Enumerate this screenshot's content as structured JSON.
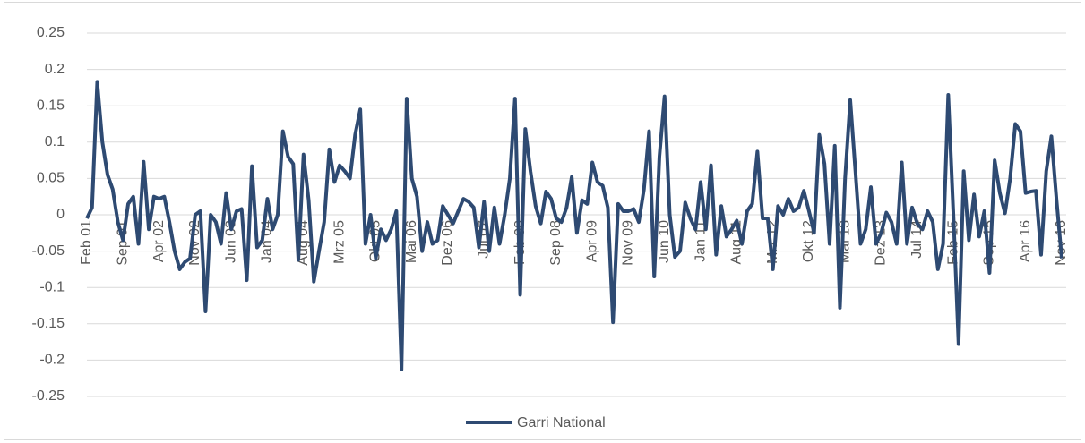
{
  "chart_data": {
    "type": "line",
    "categories": [
      "Feb 01",
      null,
      null,
      null,
      null,
      null,
      null,
      "Sep 01",
      null,
      null,
      null,
      null,
      null,
      null,
      "Apr 02",
      null,
      null,
      null,
      null,
      null,
      null,
      "Nov 02",
      null,
      null,
      null,
      null,
      null,
      null,
      "Jun 03",
      null,
      null,
      null,
      null,
      null,
      null,
      "Jan 04",
      null,
      null,
      null,
      null,
      null,
      null,
      "Aug 04",
      null,
      null,
      null,
      null,
      null,
      null,
      "Mrz 05",
      null,
      null,
      null,
      null,
      null,
      null,
      "Okt 05",
      null,
      null,
      null,
      null,
      null,
      null,
      "Mai 06",
      null,
      null,
      null,
      null,
      null,
      null,
      "Dez 06",
      null,
      null,
      null,
      null,
      null,
      null,
      "Jul 07",
      null,
      null,
      null,
      null,
      null,
      null,
      "Feb 08",
      null,
      null,
      null,
      null,
      null,
      null,
      "Sep 08",
      null,
      null,
      null,
      null,
      null,
      null,
      "Apr 09",
      null,
      null,
      null,
      null,
      null,
      null,
      "Nov 09",
      null,
      null,
      null,
      null,
      null,
      null,
      "Jun 10",
      null,
      null,
      null,
      null,
      null,
      null,
      "Jan 11",
      null,
      null,
      null,
      null,
      null,
      null,
      "Aug 11",
      null,
      null,
      null,
      null,
      null,
      null,
      "Mrz 12",
      null,
      null,
      null,
      null,
      null,
      null,
      "Okt 12",
      null,
      null,
      null,
      null,
      null,
      null,
      "Mai 13",
      null,
      null,
      null,
      null,
      null,
      null,
      "Dez 13",
      null,
      null,
      null,
      null,
      null,
      null,
      "Jul 14",
      null,
      null,
      null,
      null,
      null,
      null,
      "Feb 15",
      null,
      null,
      null,
      null,
      null,
      null,
      "Sep 15",
      null,
      null,
      null,
      null,
      null,
      null,
      "Apr 16",
      null,
      null,
      null,
      null,
      null,
      null,
      "Nov 16"
    ],
    "series": [
      {
        "name": "Garri National",
        "color": "#2e4a72",
        "values": [
          -0.005,
          0.01,
          0.183,
          0.1,
          0.055,
          0.035,
          -0.01,
          -0.035,
          0.015,
          0.025,
          -0.04,
          0.073,
          -0.02,
          0.025,
          0.022,
          0.025,
          -0.01,
          -0.05,
          -0.075,
          -0.065,
          -0.06,
          0.0,
          0.005,
          -0.133,
          0.0,
          -0.01,
          -0.04,
          0.03,
          -0.02,
          0.005,
          0.008,
          -0.09,
          0.067,
          -0.045,
          -0.035,
          0.022,
          -0.02,
          0.0,
          0.115,
          0.08,
          0.07,
          -0.062,
          0.083,
          0.02,
          -0.092,
          -0.05,
          -0.01,
          0.09,
          0.045,
          0.068,
          0.06,
          0.05,
          0.11,
          0.145,
          -0.04,
          0.0,
          -0.06,
          -0.02,
          -0.035,
          -0.02,
          0.005,
          -0.213,
          0.16,
          0.05,
          0.025,
          -0.05,
          -0.01,
          -0.04,
          -0.035,
          0.012,
          0.0,
          -0.012,
          0.005,
          0.022,
          0.018,
          0.01,
          -0.045,
          0.018,
          -0.05,
          0.01,
          -0.04,
          0.0,
          0.05,
          0.16,
          -0.11,
          0.118,
          0.06,
          0.012,
          -0.012,
          0.032,
          0.022,
          -0.005,
          -0.01,
          0.01,
          0.052,
          -0.025,
          0.02,
          0.015,
          0.072,
          0.045,
          0.04,
          0.01,
          -0.148,
          0.015,
          0.005,
          0.005,
          0.008,
          -0.01,
          0.035,
          0.115,
          -0.085,
          0.08,
          0.163,
          0.0,
          -0.058,
          -0.05,
          0.017,
          -0.005,
          -0.02,
          0.045,
          -0.02,
          0.068,
          -0.055,
          0.012,
          -0.03,
          -0.02,
          -0.008,
          -0.04,
          0.005,
          0.015,
          0.087,
          -0.005,
          -0.005,
          -0.075,
          0.012,
          0.0,
          0.022,
          0.005,
          0.01,
          0.033,
          0.005,
          -0.025,
          0.11,
          0.07,
          -0.04,
          0.095,
          -0.128,
          0.05,
          0.158,
          0.06,
          -0.04,
          -0.02,
          0.038,
          -0.04,
          -0.025,
          0.003,
          -0.01,
          -0.04,
          0.072,
          -0.04,
          0.01,
          -0.012,
          -0.02,
          0.005,
          -0.01,
          -0.075,
          -0.04,
          0.165,
          0.0,
          -0.178,
          0.06,
          -0.035,
          0.028,
          -0.03,
          0.005,
          -0.08,
          0.075,
          0.03,
          0.002,
          0.05,
          0.125,
          0.115,
          0.03,
          0.032,
          0.033,
          -0.055,
          0.06,
          0.108,
          0.02,
          -0.06
        ]
      }
    ],
    "ylim": [
      -0.25,
      0.25
    ],
    "yticks": [
      0.25,
      0.2,
      0.15,
      0.1,
      0.05,
      0,
      -0.05,
      -0.1,
      -0.15,
      -0.2,
      -0.25
    ],
    "grid": true,
    "legend": "bottom"
  }
}
